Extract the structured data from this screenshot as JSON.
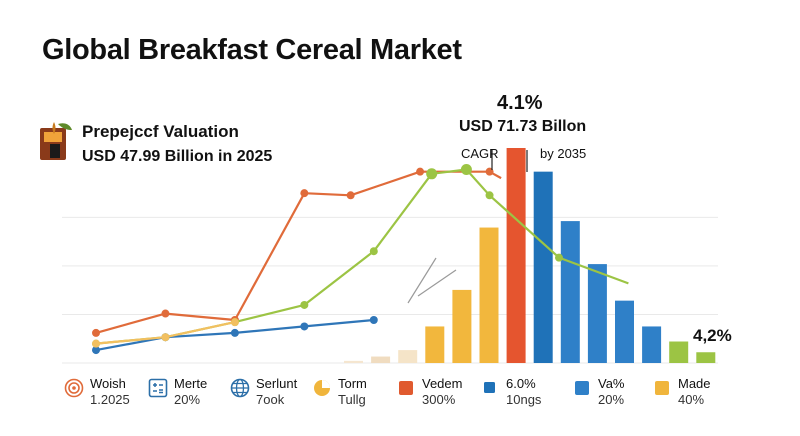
{
  "title": "Global Breakfast Cereal Market",
  "valuation": {
    "title": "Prepejccf Valuation",
    "amount": "USD 47.99 Billion in 2025"
  },
  "peak": {
    "percent": "4.1%",
    "value": "USD 71.73 Billon",
    "cagr": "CAGR",
    "by": "by 2035"
  },
  "end_percent": "4,2%",
  "legend": [
    {
      "icon": "spiral-icon",
      "name": "Woish",
      "sub": "1.2025",
      "color": "#e06b3a"
    },
    {
      "icon": "calculator-icon",
      "name": "Merte",
      "sub": "20%",
      "color": "#2c6fa8"
    },
    {
      "icon": "globe-icon",
      "name": "Serlunt",
      "sub": "7ook",
      "color": "#2c6fa8"
    },
    {
      "icon": "circle-icon",
      "name": "Torm",
      "sub": "Tullg",
      "color": "#f0b53c"
    },
    {
      "icon": "square-icon",
      "name": "Vedem",
      "sub": "300%",
      "color": "#e05a2f"
    },
    {
      "icon": "square-icon",
      "name": "6.0%",
      "sub": "10ngs",
      "color": "#1f72b8"
    },
    {
      "icon": "square-icon",
      "name": "Va%",
      "sub": "20%",
      "color": "#2f80c8"
    },
    {
      "icon": "square-icon",
      "name": "Made",
      "sub": "40%",
      "color": "#f0b53c"
    }
  ],
  "chart_data": {
    "type": "bar",
    "title": "Global Breakfast Cereal Market",
    "ylim": [
      0,
      100
    ],
    "grid": true,
    "bars": [
      {
        "value": 1,
        "color": "#f5e6d0"
      },
      {
        "value": 3,
        "color": "#f0dcc0"
      },
      {
        "value": 6,
        "color": "#f5e4c8"
      },
      {
        "value": 17,
        "color": "#f2b73d"
      },
      {
        "value": 34,
        "color": "#f2b73d"
      },
      {
        "value": 63,
        "color": "#f2b73d"
      },
      {
        "value": 100,
        "color": "#e5552f"
      },
      {
        "value": 89,
        "color": "#1f72b8"
      },
      {
        "value": 66,
        "color": "#2f80c8"
      },
      {
        "value": 46,
        "color": "#2f80c8"
      },
      {
        "value": 29,
        "color": "#2f80c8"
      },
      {
        "value": 17,
        "color": "#2f80c8"
      },
      {
        "value": 10,
        "color": "#9cc444"
      },
      {
        "value": 5,
        "color": "#9cc444"
      }
    ],
    "series": [
      {
        "color": "#e06b3a",
        "points": [
          [
            0,
            14
          ],
          [
            3,
            23
          ],
          [
            6,
            20
          ],
          [
            9,
            79
          ],
          [
            11,
            78
          ],
          [
            14,
            89
          ],
          [
            17,
            89
          ],
          [
            17.5,
            86
          ]
        ]
      },
      {
        "color": "#9cc444",
        "points": [
          [
            0,
            9
          ],
          [
            3,
            12
          ],
          [
            6,
            19
          ],
          [
            9,
            27
          ],
          [
            12,
            52
          ],
          [
            14.5,
            88
          ],
          [
            16,
            90
          ],
          [
            17,
            78
          ],
          [
            20,
            49
          ],
          [
            23,
            37
          ]
        ]
      },
      {
        "color": "#2f76b8",
        "points": [
          [
            0,
            6
          ],
          [
            3,
            12
          ],
          [
            6,
            14
          ],
          [
            9,
            17
          ],
          [
            12,
            20
          ]
        ]
      },
      {
        "color": "#f2c060",
        "points": [
          [
            0,
            9
          ],
          [
            3,
            12
          ],
          [
            6,
            19
          ]
        ]
      }
    ]
  }
}
